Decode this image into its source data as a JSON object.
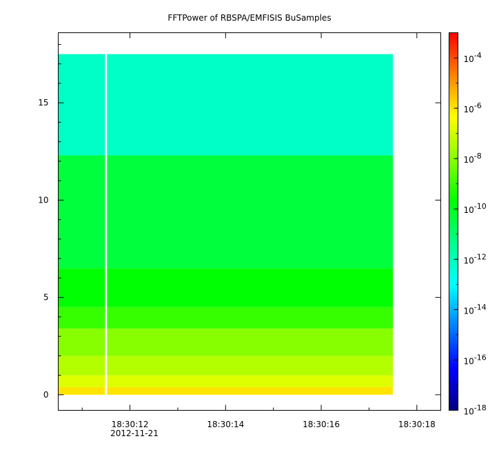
{
  "chart_data": {
    "type": "heatmap",
    "title": "FFTPower of RBSPA/EMFISIS  BuSamples",
    "xlabel": "",
    "ylabel": "",
    "x_tick_labels": [
      "18:30:12",
      "18:30:14",
      "18:30:16",
      "18:30:18"
    ],
    "x_tick_values": [
      12,
      14,
      16,
      18
    ],
    "x_sub_label": "2012-11-21",
    "x_range": [
      10.5,
      18.5
    ],
    "data_x_range": [
      10.5,
      17.5
    ],
    "data_gap_x": 11.5,
    "y_ticks": [
      0,
      5,
      10,
      15
    ],
    "ylim": [
      -0.8,
      18.6
    ],
    "data_y_range": [
      0,
      17.5
    ],
    "colorbar": {
      "scale": "log",
      "range_exp": [
        -18,
        -3
      ],
      "tick_labels": [
        "10-18",
        "10-16",
        "10-14",
        "10-12",
        "10-10",
        "10-8",
        "10-6",
        "10-4"
      ],
      "tick_exps": [
        -18,
        -16,
        -14,
        -12,
        -10,
        -8,
        -6,
        -4
      ],
      "colormap": [
        "#00007f",
        "#0000ff",
        "#007fff",
        "#00ffff",
        "#00ff88",
        "#00ff00",
        "#88ff00",
        "#ffff00",
        "#ff7f00",
        "#ff0000"
      ]
    },
    "bands": [
      {
        "y0": 0.0,
        "y1": 0.4,
        "log_power": -6.0
      },
      {
        "y0": 0.4,
        "y1": 1.0,
        "log_power": -6.8
      },
      {
        "y0": 1.0,
        "y1": 2.0,
        "log_power": -7.4
      },
      {
        "y0": 2.0,
        "y1": 3.4,
        "log_power": -8.0
      },
      {
        "y0": 3.4,
        "y1": 4.5,
        "log_power": -9.0
      },
      {
        "y0": 4.5,
        "y1": 6.5,
        "log_power": -9.7
      },
      {
        "y0": 6.5,
        "y1": 12.3,
        "log_power": -10.4
      },
      {
        "y0": 12.3,
        "y1": 17.5,
        "log_power": -12.2
      }
    ]
  }
}
